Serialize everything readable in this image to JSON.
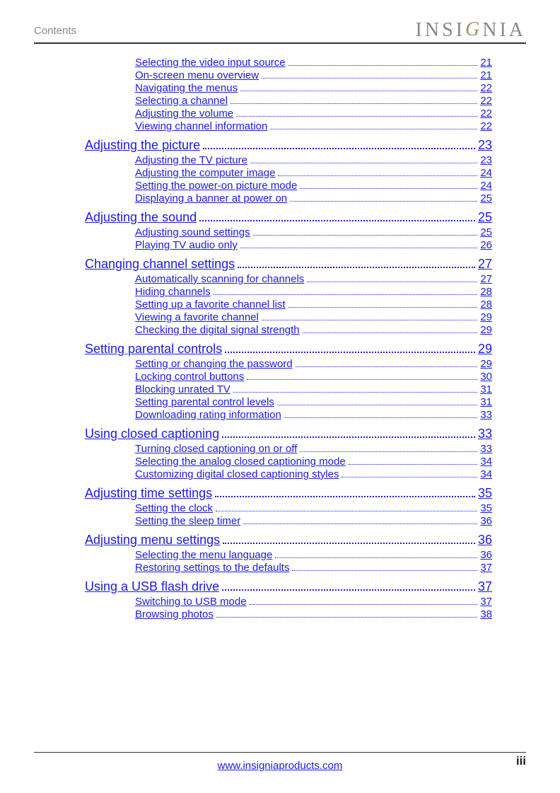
{
  "header_title": "Contents",
  "brand_prefix": "INSI",
  "brand_g": "G",
  "brand_suffix": "NIA",
  "footer_url": "www.insigniaproducts.com",
  "footer_pageno": "iii",
  "preceding_subs": [
    {
      "label": "Selecting the video input source",
      "page": "21"
    },
    {
      "label": "On-screen menu overview",
      "page": "21"
    },
    {
      "label": "Navigating the menus",
      "page": "22"
    },
    {
      "label": "Selecting a channel",
      "page": "22"
    },
    {
      "label": "Adjusting the volume",
      "page": "22"
    },
    {
      "label": "Viewing channel information",
      "page": "22"
    }
  ],
  "sections": [
    {
      "label": "Adjusting the picture",
      "page": "23",
      "subs": [
        {
          "label": "Adjusting the TV picture",
          "page": "23"
        },
        {
          "label": "Adjusting the computer image",
          "page": "24"
        },
        {
          "label": "Setting the power-on picture mode",
          "page": "24"
        },
        {
          "label": "Displaying a banner at power on",
          "page": "25"
        }
      ]
    },
    {
      "label": "Adjusting the sound",
      "page": "25",
      "subs": [
        {
          "label": "Adjusting sound settings",
          "page": "25"
        },
        {
          "label": "Playing TV audio only",
          "page": "26"
        }
      ]
    },
    {
      "label": "Changing channel settings",
      "page": "27",
      "subs": [
        {
          "label": "Automatically scanning for channels",
          "page": "27"
        },
        {
          "label": "Hiding channels",
          "page": "28"
        },
        {
          "label": "Setting up a favorite channel list",
          "page": "28"
        },
        {
          "label": "Viewing a favorite channel",
          "page": "29"
        },
        {
          "label": "Checking the digital signal strength",
          "page": "29"
        }
      ]
    },
    {
      "label": "Setting parental controls",
      "page": "29",
      "subs": [
        {
          "label": "Setting or changing the password",
          "page": "29"
        },
        {
          "label": "Locking control buttons",
          "page": "30"
        },
        {
          "label": "Blocking unrated TV",
          "page": "31"
        },
        {
          "label": "Setting parental control levels",
          "page": "31"
        },
        {
          "label": "Downloading rating information",
          "page": "33"
        }
      ]
    },
    {
      "label": "Using closed captioning",
      "page": "33",
      "subs": [
        {
          "label": "Turning closed captioning on or off",
          "page": "33"
        },
        {
          "label": "Selecting the analog closed captioning mode",
          "page": "34"
        },
        {
          "label": "Customizing digital closed captioning styles",
          "page": "34"
        }
      ]
    },
    {
      "label": "Adjusting time settings",
      "page": "35",
      "subs": [
        {
          "label": "Setting the clock",
          "page": "35"
        },
        {
          "label": "Setting the sleep timer",
          "page": "36"
        }
      ]
    },
    {
      "label": "Adjusting menu settings",
      "page": "36",
      "subs": [
        {
          "label": "Selecting the menu language",
          "page": "36"
        },
        {
          "label": "Restoring settings to the defaults",
          "page": "37"
        }
      ]
    },
    {
      "label": "Using a USB flash drive",
      "page": "37",
      "subs": [
        {
          "label": "Switching to USB mode",
          "page": "37"
        },
        {
          "label": "Browsing photos",
          "page": "38"
        }
      ]
    }
  ]
}
